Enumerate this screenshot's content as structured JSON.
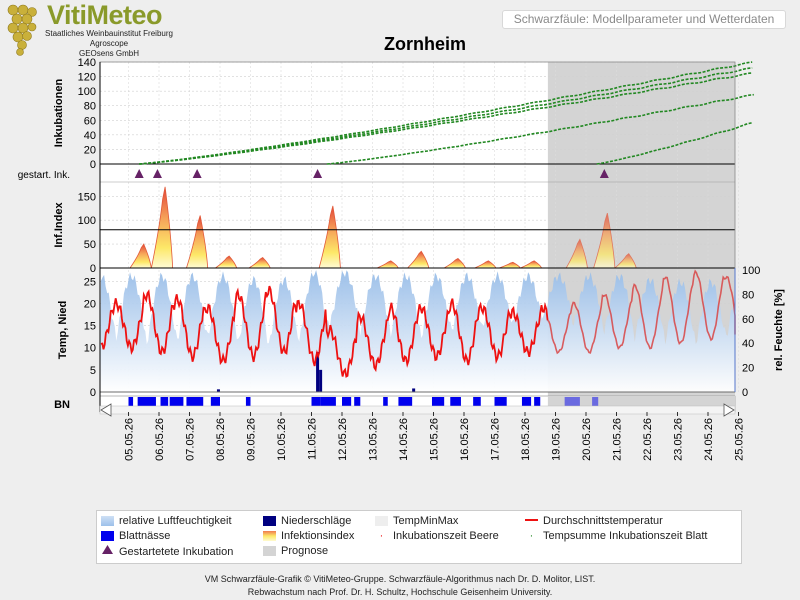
{
  "header": {
    "logo_text": "VitiMeteo",
    "logo_sub1": "Staatliches Weinbauinstitut Freiburg",
    "logo_sub2": "Agroscope",
    "logo_sub3": "GEOsens GmbH",
    "box_text": "Schwarzfäule: Modellparameter und Wetterdaten"
  },
  "chart_title": "Zornheim",
  "colors": {
    "humidity": "#a8c8ec",
    "temperature": "#ee1111",
    "leafwet": "#0000ee",
    "rain": "#000080",
    "incubation": "#228822",
    "marker": "#662266",
    "prognosis": "#d4d4d4"
  },
  "chart_data": {
    "type": "line",
    "x_dates": [
      "05.05.26",
      "06.05.26",
      "07.05.26",
      "08.05.26",
      "09.05.26",
      "10.05.26",
      "11.05.26",
      "12.05.26",
      "13.05.26",
      "14.05.26",
      "15.05.26",
      "16.05.26",
      "17.05.26",
      "18.05.26",
      "19.05.26",
      "20.05.26",
      "21.05.26",
      "22.05.26",
      "23.05.26",
      "24.05.26",
      "25.05.26"
    ],
    "prognosis_start": "18.05.26 18:00",
    "panel_incubation": {
      "ylabel": "Inkubationen",
      "yticks": [
        0,
        20,
        40,
        60,
        80,
        100,
        120,
        140
      ],
      "ylim": [
        0,
        140
      ],
      "curves": [
        {
          "start_day": 0.35,
          "end_day": 20.5,
          "end_value": 140
        },
        {
          "start_day": 0.35,
          "end_day": 20.5,
          "end_value": 132
        },
        {
          "start_day": 0.35,
          "end_day": 20.5,
          "end_value": 125
        },
        {
          "start_day": 6.5,
          "end_day": 20.5,
          "end_value": 95
        },
        {
          "start_day": 15.35,
          "end_day": 20.5,
          "end_value": 57
        }
      ]
    },
    "panel_started": {
      "ylabel": "gestart. Ink.",
      "markers_day": [
        0.35,
        0.95,
        2.25,
        6.2,
        15.6
      ]
    },
    "panel_infection": {
      "ylabel": "Inf.Index",
      "yticks": [
        0,
        50,
        100,
        150
      ],
      "ylim": [
        0,
        180
      ],
      "threshold": 80,
      "peaks": [
        {
          "day": 1.2,
          "value": 170
        },
        {
          "day": 0.5,
          "value": 50
        },
        {
          "day": 2.35,
          "value": 110
        },
        {
          "day": 3.3,
          "value": 25
        },
        {
          "day": 4.4,
          "value": 22
        },
        {
          "day": 6.7,
          "value": 130
        },
        {
          "day": 8.6,
          "value": 15
        },
        {
          "day": 9.6,
          "value": 35
        },
        {
          "day": 10.8,
          "value": 20
        },
        {
          "day": 11.8,
          "value": 15
        },
        {
          "day": 12.6,
          "value": 12
        },
        {
          "day": 13.3,
          "value": 15
        },
        {
          "day": 14.8,
          "value": 60
        },
        {
          "day": 15.7,
          "value": 115
        },
        {
          "day": 16.4,
          "value": 30
        }
      ]
    },
    "panel_weather": {
      "ylabel_left": "Temp, Nied",
      "ylabel_right": "rel. Feuchte [%]",
      "yticks_left": [
        0,
        5,
        10,
        15,
        20,
        25
      ],
      "ylim_left": [
        0,
        28
      ],
      "yticks_right": [
        0,
        20,
        40,
        60,
        80,
        100
      ],
      "ylim_right": [
        0,
        100
      ],
      "temp_daily_min": [
        10,
        9,
        8,
        7,
        8,
        9,
        7,
        4,
        6,
        7,
        8,
        7,
        8,
        9,
        9,
        9,
        10,
        10,
        11,
        12,
        13
      ],
      "temp_daily_max": [
        20,
        22,
        21,
        19,
        22,
        23,
        20,
        14,
        17,
        19,
        19,
        20,
        19,
        18,
        19,
        20,
        22,
        24,
        26,
        27,
        26
      ],
      "rain_events": [
        {
          "day": 6.15,
          "value": 9
        },
        {
          "day": 6.25,
          "value": 5
        },
        {
          "day": 9.3,
          "value": 0.8
        },
        {
          "day": 2.9,
          "value": 0.6
        }
      ],
      "humidity_daily_min": [
        45,
        40,
        42,
        45,
        40,
        38,
        42,
        55,
        50,
        48,
        45,
        50,
        52,
        55,
        60,
        55,
        50,
        45,
        42,
        40,
        45
      ],
      "humidity_daily_max": [
        95,
        95,
        95,
        95,
        92,
        92,
        98,
        98,
        95,
        95,
        95,
        95,
        95,
        95,
        95,
        95,
        95,
        92,
        90,
        90,
        92
      ]
    },
    "panel_bn": {
      "ylabel": "BN",
      "wet_intervals_day": [
        [
          0,
          0.15
        ],
        [
          0.3,
          0.9
        ],
        [
          1.05,
          1.3
        ],
        [
          1.35,
          1.8
        ],
        [
          1.9,
          2.45
        ],
        [
          2.7,
          3.0
        ],
        [
          3.85,
          4.0
        ],
        [
          6.0,
          6.3
        ],
        [
          6.3,
          6.8
        ],
        [
          7.0,
          7.3
        ],
        [
          7.4,
          7.6
        ],
        [
          8.35,
          8.5
        ],
        [
          8.85,
          9.3
        ],
        [
          9.95,
          10.35
        ],
        [
          10.55,
          10.9
        ],
        [
          11.3,
          11.55
        ],
        [
          12.0,
          12.4
        ],
        [
          12.9,
          13.2
        ],
        [
          13.3,
          13.5
        ],
        [
          14.3,
          14.8
        ],
        [
          15.2,
          15.4
        ]
      ]
    },
    "legend": [
      {
        "label": "relative Luftfeuchtigkeit",
        "swatch": "humidity"
      },
      {
        "label": "Niederschläge",
        "swatch": "rain"
      },
      {
        "label": "TempMinMax",
        "swatch": "tempminmax"
      },
      {
        "label": "Durchschnittstemperatur",
        "swatch": "temperature"
      },
      {
        "label": "Blattnässe",
        "swatch": "leafwet"
      },
      {
        "label": "Infektionsindex",
        "swatch": "infection"
      },
      {
        "label": "Inkubationszeit Beere",
        "swatch": "dot"
      },
      {
        "label": "Tempsumme Inkubationszeit Blatt",
        "swatch": "dot2"
      },
      {
        "label": "Gestartetete Inkubation",
        "swatch": "triangle"
      },
      {
        "label": "Prognose",
        "swatch": "prognosis"
      }
    ]
  },
  "footer": {
    "line1": "VM Schwarzfäule-Grafik © VitiMeteo-Gruppe. Schwarzfäule-Algorithmus nach Dr. D. Molitor, LIST.",
    "line2": "Rebwachstum nach Prof. Dr. H. Schultz, Hochschule Geisenheim University."
  }
}
